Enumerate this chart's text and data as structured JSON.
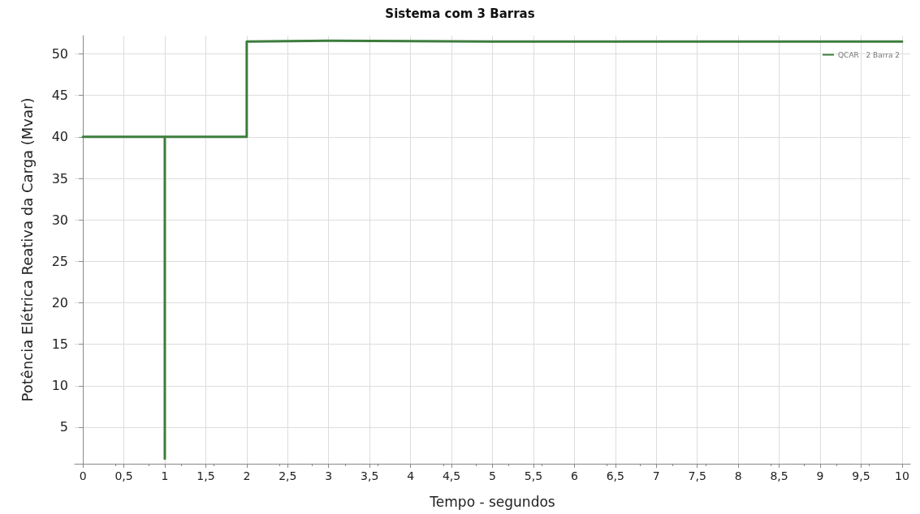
{
  "chart_data": {
    "type": "line",
    "title": "Sistema com 3 Barras",
    "xlabel": "Tempo - segundos",
    "ylabel": "Potência Elétrica Reativa da Carga (Mvar)",
    "series": [
      {
        "name": "QCAR   2 Barra 2",
        "color": "#3c7d3c",
        "x": [
          0,
          1,
          1,
          1,
          1.5,
          2,
          2,
          3,
          5,
          7,
          10
        ],
        "values": [
          40,
          40,
          1.2,
          40,
          40,
          40,
          51.5,
          51.6,
          51.5,
          51.5,
          51.5
        ]
      }
    ],
    "xlim": [
      -0.1,
      10.1
    ],
    "xticks": [
      0,
      {
        "value": 0.5,
        "label": "0,5"
      },
      1,
      {
        "value": 1.5,
        "label": "1,5"
      },
      2,
      {
        "value": 2.5,
        "label": "2,5"
      },
      3,
      {
        "value": 3.5,
        "label": "3,5"
      },
      4,
      {
        "value": 4.5,
        "label": "4,5"
      },
      5,
      {
        "value": 5.5,
        "label": "5,5"
      },
      6,
      {
        "value": 6.5,
        "label": "6,5"
      },
      7,
      {
        "value": 7.5,
        "label": "7,5"
      },
      8,
      {
        "value": 8.5,
        "label": "8,5"
      },
      9,
      {
        "value": 9.5,
        "label": "9,5"
      },
      10
    ],
    "ylim": [
      0.6,
      52.2
    ],
    "yticks": [
      5,
      10,
      15,
      20,
      25,
      30,
      35,
      40,
      45,
      50
    ],
    "grid": true,
    "legend": "top right",
    "marker": "none",
    "line_style": "solid"
  }
}
